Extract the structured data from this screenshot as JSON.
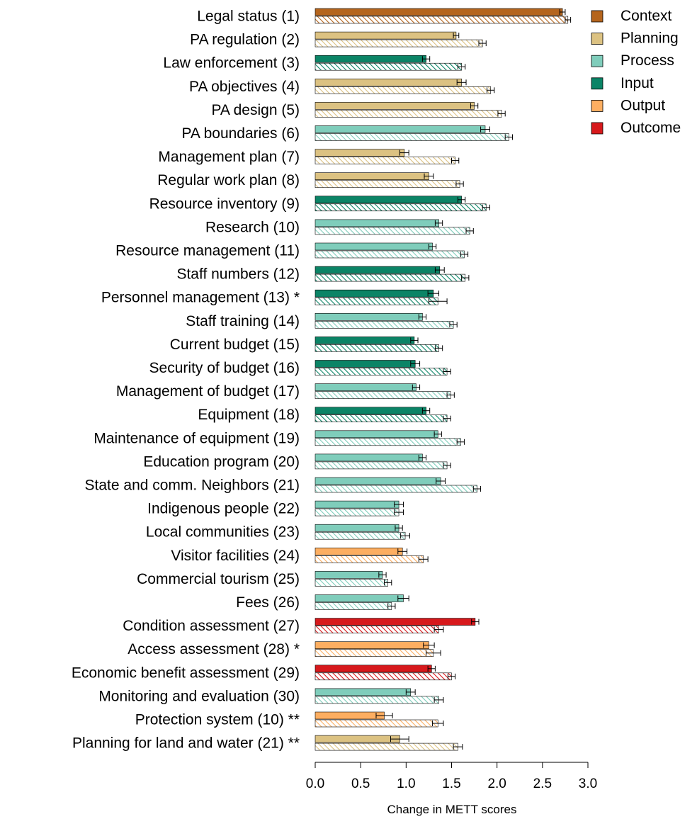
{
  "chart_data": {
    "type": "bar",
    "orientation": "horizontal",
    "xlabel": "Change in METT scores",
    "ylabel": "",
    "xlim": [
      0,
      3.0
    ],
    "x_ticks": [
      "0.0",
      "0.5",
      "1.0",
      "1.5",
      "2.0",
      "2.5",
      "3.0"
    ],
    "grid": false,
    "legend_position": "top-right",
    "legend": [
      {
        "name": "Context",
        "color": "#b5651d"
      },
      {
        "name": "Planning",
        "color": "#dcc282"
      },
      {
        "name": "Process",
        "color": "#7fcdbb"
      },
      {
        "name": "Input",
        "color": "#0b8466"
      },
      {
        "name": "Output",
        "color": "#fdae61"
      },
      {
        "name": "Outcome",
        "color": "#d7191c"
      }
    ],
    "bar_styles": {
      "solid": "upper bar of each pair",
      "hatched": "lower bar of each pair"
    },
    "items": [
      {
        "label": "Legal status (1)",
        "group": "Context",
        "solid": 2.72,
        "solid_err": 0.03,
        "hatched": 2.78,
        "hatched_err": 0.03
      },
      {
        "label": "PA regulation (2)",
        "group": "Planning",
        "solid": 1.55,
        "solid_err": 0.03,
        "hatched": 1.84,
        "hatched_err": 0.04
      },
      {
        "label": "Law enforcement (3)",
        "group": "Input",
        "solid": 1.22,
        "solid_err": 0.04,
        "hatched": 1.61,
        "hatched_err": 0.04
      },
      {
        "label": "PA objectives (4)",
        "group": "Planning",
        "solid": 1.61,
        "solid_err": 0.05,
        "hatched": 1.93,
        "hatched_err": 0.04
      },
      {
        "label": "PA design (5)",
        "group": "Planning",
        "solid": 1.75,
        "solid_err": 0.04,
        "hatched": 2.05,
        "hatched_err": 0.04
      },
      {
        "label": "PA boundaries (6)",
        "group": "Process",
        "solid": 1.87,
        "solid_err": 0.05,
        "hatched": 2.13,
        "hatched_err": 0.04
      },
      {
        "label": "Management plan (7)",
        "group": "Planning",
        "solid": 0.98,
        "solid_err": 0.05,
        "hatched": 1.54,
        "hatched_err": 0.04
      },
      {
        "label": "Regular work plan (8)",
        "group": "Planning",
        "solid": 1.25,
        "solid_err": 0.05,
        "hatched": 1.59,
        "hatched_err": 0.04
      },
      {
        "label": "Resource inventory (9)",
        "group": "Input",
        "solid": 1.61,
        "solid_err": 0.04,
        "hatched": 1.88,
        "hatched_err": 0.04
      },
      {
        "label": "Research (10)",
        "group": "Process",
        "solid": 1.36,
        "solid_err": 0.04,
        "hatched": 1.7,
        "hatched_err": 0.04
      },
      {
        "label": "Resource management (11)",
        "group": "Process",
        "solid": 1.29,
        "solid_err": 0.04,
        "hatched": 1.64,
        "hatched_err": 0.04
      },
      {
        "label": "Staff numbers (12)",
        "group": "Input",
        "solid": 1.37,
        "solid_err": 0.05,
        "hatched": 1.65,
        "hatched_err": 0.04
      },
      {
        "label": "Personnel  management (13) *",
        "group": "Input",
        "solid": 1.3,
        "solid_err": 0.06,
        "hatched": 1.35,
        "hatched_err": 0.1
      },
      {
        "label": "Staff training (14)",
        "group": "Process",
        "solid": 1.18,
        "solid_err": 0.04,
        "hatched": 1.52,
        "hatched_err": 0.04
      },
      {
        "label": "Current budget (15)",
        "group": "Input",
        "solid": 1.09,
        "solid_err": 0.04,
        "hatched": 1.36,
        "hatched_err": 0.04
      },
      {
        "label": "Security of budget (16)",
        "group": "Input",
        "solid": 1.1,
        "solid_err": 0.05,
        "hatched": 1.45,
        "hatched_err": 0.04
      },
      {
        "label": "Management of budget (17)",
        "group": "Process",
        "solid": 1.11,
        "solid_err": 0.04,
        "hatched": 1.49,
        "hatched_err": 0.04
      },
      {
        "label": "Equipment (18)",
        "group": "Input",
        "solid": 1.22,
        "solid_err": 0.04,
        "hatched": 1.45,
        "hatched_err": 0.04
      },
      {
        "label": "Maintenance of equipment (19)",
        "group": "Process",
        "solid": 1.35,
        "solid_err": 0.04,
        "hatched": 1.6,
        "hatched_err": 0.04
      },
      {
        "label": "Education program (20)",
        "group": "Process",
        "solid": 1.18,
        "solid_err": 0.04,
        "hatched": 1.45,
        "hatched_err": 0.04
      },
      {
        "label": "State and comm. Neighbors (21)",
        "group": "Process",
        "solid": 1.38,
        "solid_err": 0.05,
        "hatched": 1.78,
        "hatched_err": 0.04
      },
      {
        "label": "Indigenous people (22)",
        "group": "Process",
        "solid": 0.92,
        "solid_err": 0.05,
        "hatched": 0.92,
        "hatched_err": 0.05
      },
      {
        "label": "Local communities (23)",
        "group": "Process",
        "solid": 0.92,
        "solid_err": 0.04,
        "hatched": 0.99,
        "hatched_err": 0.05
      },
      {
        "label": "Visitor facilities (24)",
        "group": "Output",
        "solid": 0.96,
        "solid_err": 0.05,
        "hatched": 1.19,
        "hatched_err": 0.05
      },
      {
        "label": "Commercial tourism (25)",
        "group": "Process",
        "solid": 0.74,
        "solid_err": 0.04,
        "hatched": 0.8,
        "hatched_err": 0.04
      },
      {
        "label": "Fees (26)",
        "group": "Process",
        "solid": 0.97,
        "solid_err": 0.06,
        "hatched": 0.84,
        "hatched_err": 0.04
      },
      {
        "label": "Condition assessment (27)",
        "group": "Outcome",
        "solid": 1.76,
        "solid_err": 0.04,
        "hatched": 1.36,
        "hatched_err": 0.05
      },
      {
        "label": "Access assessment (28) *",
        "group": "Output",
        "solid": 1.25,
        "solid_err": 0.06,
        "hatched": 1.3,
        "hatched_err": 0.08
      },
      {
        "label": "Economic benefit assessment (29)",
        "group": "Outcome",
        "solid": 1.28,
        "solid_err": 0.04,
        "hatched": 1.5,
        "hatched_err": 0.04
      },
      {
        "label": "Monitoring and evaluation (30)",
        "group": "Process",
        "solid": 1.05,
        "solid_err": 0.05,
        "hatched": 1.36,
        "hatched_err": 0.05
      },
      {
        "label": "Protection system (10) **",
        "group": "Output",
        "solid": 0.76,
        "solid_err": 0.09,
        "hatched": 1.35,
        "hatched_err": 0.06
      },
      {
        "label": "Planning for land and water (21) **",
        "group": "Planning",
        "solid": 0.93,
        "solid_err": 0.1,
        "hatched": 1.57,
        "hatched_err": 0.05
      }
    ]
  }
}
